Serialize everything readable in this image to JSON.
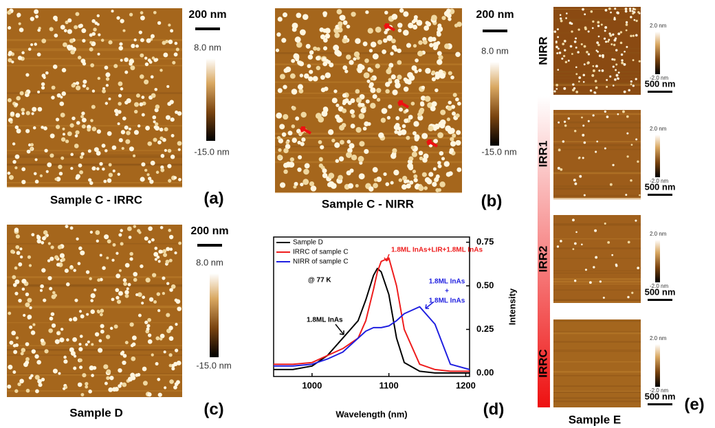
{
  "panels": [
    {
      "caption": "Sample C - IRRC",
      "label": "(a)",
      "scale_bar": "200 nm",
      "colorbar_max": "8.0 nm",
      "colorbar_min": "-15.0 nm"
    },
    {
      "caption": "Sample C - NIRR",
      "label": "(b)",
      "scale_bar": "200 nm",
      "colorbar_max": "8.0 nm",
      "colorbar_min": "-15.0 nm"
    },
    {
      "caption": "Sample D",
      "label": "(c)",
      "scale_bar": "200 nm",
      "colorbar_max": "8.0 nm",
      "colorbar_min": "-15.0 nm"
    }
  ],
  "sample_e": {
    "caption": "Sample E",
    "label": "(e)",
    "rows": [
      {
        "name": "NIRR",
        "scale_bar": "500 nm",
        "colorbar_max": "2.0 nm",
        "colorbar_min": "-2.0 nm"
      },
      {
        "name": "IRR1",
        "scale_bar": "500 nm",
        "colorbar_max": "2.0 nm",
        "colorbar_min": "-2.0 nm"
      },
      {
        "name": "IRR2",
        "scale_bar": "500 nm",
        "colorbar_max": "2.0 nm",
        "colorbar_min": "-2.0 nm"
      },
      {
        "name": "IRRC",
        "scale_bar": "500 nm",
        "colorbar_max": "2.0 nm",
        "colorbar_min": "-2.0 nm"
      }
    ]
  },
  "chart_data": {
    "type": "line",
    "label": "(d)",
    "x_label": "Wavelength (nm)",
    "y_label": "Intensity",
    "x": [
      950,
      975,
      1000,
      1020,
      1040,
      1060,
      1070,
      1080,
      1085,
      1090,
      1100,
      1110,
      1120,
      1140,
      1160,
      1180,
      1205
    ],
    "series": [
      {
        "name": "Sample D",
        "color": "#000000",
        "values": [
          0.02,
          0.02,
          0.04,
          0.1,
          0.2,
          0.3,
          0.42,
          0.56,
          0.6,
          0.58,
          0.45,
          0.2,
          0.06,
          0.01,
          0.0,
          0.0,
          0.0
        ]
      },
      {
        "name": "IRRC of sample C",
        "color": "#ee1c1c",
        "values": [
          0.05,
          0.05,
          0.06,
          0.1,
          0.14,
          0.2,
          0.3,
          0.48,
          0.58,
          0.64,
          0.66,
          0.5,
          0.25,
          0.05,
          0.02,
          0.01,
          0.01
        ]
      },
      {
        "name": "NIRR of sample C",
        "color": "#1f1fe0",
        "values": [
          0.04,
          0.04,
          0.05,
          0.08,
          0.12,
          0.2,
          0.24,
          0.26,
          0.26,
          0.26,
          0.27,
          0.3,
          0.34,
          0.38,
          0.28,
          0.05,
          0.02
        ]
      }
    ],
    "xlim": [
      950,
      1205
    ],
    "xticks": [
      1000,
      1100,
      1200
    ],
    "ylim": [
      -0.02,
      0.78
    ],
    "yticks": [
      {
        "value": 0,
        "label": "0.00"
      },
      {
        "value": 0.25,
        "label": "0.25"
      },
      {
        "value": 0.5,
        "label": "0.50"
      },
      {
        "value": 0.75,
        "label": "0.75"
      }
    ],
    "annotations": [
      {
        "text": "@ 77 K",
        "color": "#000000"
      },
      {
        "text": "1.8ML InAs",
        "color": "#000000"
      },
      {
        "text": "1.8ML InAs+LIR+1.8ML InAs",
        "color": "#ee1c1c"
      },
      {
        "text": "1.8ML InAs",
        "color": "#1f1fe0"
      },
      {
        "text": "+",
        "color": "#1f1fe0"
      },
      {
        "text": "1.8ML InAs",
        "color": "#1f1fe0"
      }
    ]
  }
}
